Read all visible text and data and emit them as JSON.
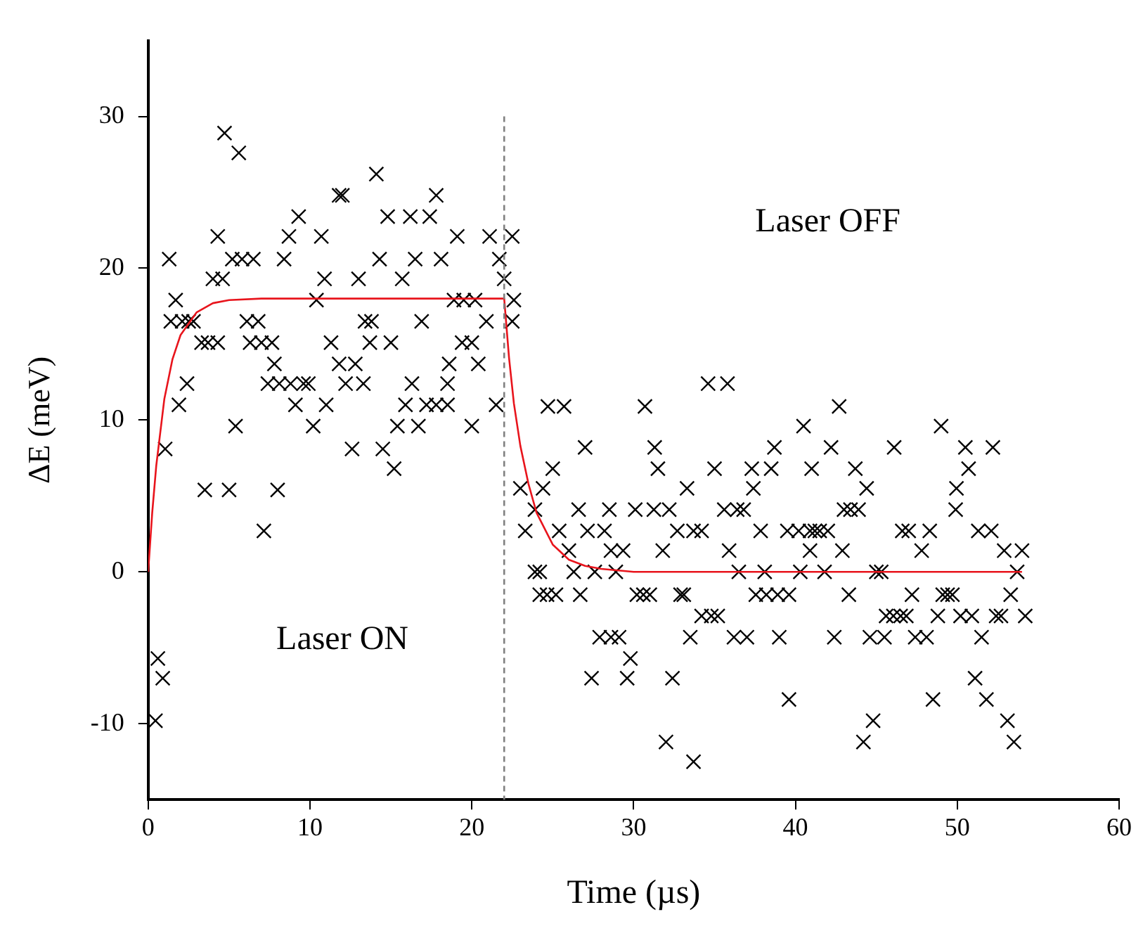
{
  "chart_data": {
    "type": "scatter",
    "xlabel": "Time (µs)",
    "ylabel": "ΔE (meV)",
    "xlim": [
      0,
      60
    ],
    "xticks": [
      0,
      10,
      20,
      30,
      40,
      50,
      60
    ],
    "ylim": [
      -15,
      35
    ],
    "yticks": [
      -10,
      0,
      10,
      20,
      30
    ],
    "grid": false,
    "legend": false,
    "marker": "cross",
    "series": [
      {
        "color": "#000000",
        "x": [
          4.72,
          5.6,
          14.1,
          11.8,
          12.0,
          17.8,
          9.3,
          14.8,
          16.2,
          17.4,
          4.3,
          8.7,
          10.7,
          19.1,
          21.1,
          22.5,
          1.3,
          5.2,
          5.8,
          6.5,
          8.4,
          14.3,
          16.5,
          18.1,
          21.7,
          4.0,
          4.6,
          10.9,
          13.0,
          15.7,
          22.0,
          1.7,
          10.4,
          18.9,
          19.5,
          20.2,
          22.6,
          1.4,
          2.1,
          2.5,
          2.8,
          6.1,
          6.8,
          13.4,
          13.8,
          16.9,
          20.9,
          22.5,
          3.3,
          3.7,
          4.3,
          6.3,
          7.0,
          7.65,
          11.3,
          13.7,
          15.0,
          19.4,
          20.0,
          7.8,
          11.8,
          12.8,
          18.6,
          20.4,
          2.4,
          7.4,
          8.1,
          8.8,
          9.6,
          9.9,
          12.2,
          13.3,
          16.3,
          18.5,
          1.9,
          9.1,
          11.0,
          15.9,
          17.2,
          17.8,
          18.5,
          21.5,
          5.4,
          10.2,
          15.4,
          16.7,
          20.0,
          1.05,
          12.6,
          14.5,
          15.2,
          3.5,
          5.0,
          8.0,
          7.15,
          0.6,
          0.9,
          0.45,
          34.6,
          35.8,
          24.7,
          25.7,
          30.7,
          40.5,
          27.0,
          31.3,
          38.7,
          25.0,
          31.5,
          35.0,
          37.3,
          38.5,
          41.0,
          23.0,
          24.4,
          33.3,
          37.4,
          23.9,
          26.6,
          28.5,
          30.1,
          31.25,
          32.2,
          35.6,
          36.4,
          36.8,
          23.3,
          25.4,
          27.15,
          28.2,
          32.7,
          33.7,
          34.2,
          37.85,
          39.5,
          40.2,
          40.9,
          41.5,
          26.0,
          28.6,
          29.35,
          31.8,
          35.9,
          40.9,
          23.9,
          24.2,
          26.3,
          27.6,
          28.9,
          36.5,
          38.1,
          40.3,
          24.2,
          24.65,
          25.2,
          26.7,
          30.2,
          30.6,
          31.0,
          32.9,
          33.1,
          37.55,
          38.2,
          38.9,
          39.6,
          34.2,
          34.8,
          35.2,
          27.9,
          28.6,
          29.1,
          33.5,
          36.2,
          37.0,
          39.0,
          29.8,
          27.4,
          29.6,
          32.4,
          39.6,
          32.0,
          33.7,
          42.7,
          49.0,
          42.2,
          46.1,
          50.5,
          52.2,
          43.7,
          50.7,
          44.4,
          49.95,
          43.0,
          43.4,
          43.9,
          49.9,
          41.2,
          42.0,
          46.6,
          47.0,
          48.3,
          51.3,
          52.1,
          42.9,
          47.8,
          52.9,
          54.0,
          41.8,
          45.0,
          45.3,
          53.7,
          43.3,
          47.2,
          49.1,
          49.4,
          49.7,
          53.3,
          45.6,
          46.05,
          46.5,
          46.85,
          48.8,
          50.2,
          50.9,
          52.4,
          52.7,
          54.2,
          42.4,
          44.6,
          45.5,
          47.4,
          48.1,
          51.5,
          51.1,
          48.5,
          51.8,
          44.8,
          53.1,
          44.2,
          53.5
        ],
        "values": [
          28.9,
          27.6,
          26.2,
          24.8,
          24.8,
          24.8,
          23.4,
          23.4,
          23.4,
          23.4,
          22.1,
          22.1,
          22.1,
          22.1,
          22.1,
          22.1,
          20.6,
          20.6,
          20.6,
          20.6,
          20.6,
          20.6,
          20.6,
          20.6,
          20.6,
          19.3,
          19.3,
          19.3,
          19.3,
          19.3,
          19.3,
          17.9,
          17.9,
          17.9,
          17.9,
          17.9,
          17.9,
          16.5,
          16.5,
          16.5,
          16.5,
          16.5,
          16.5,
          16.5,
          16.5,
          16.5,
          16.5,
          16.5,
          15.1,
          15.1,
          15.1,
          15.1,
          15.1,
          15.1,
          15.1,
          15.1,
          15.1,
          15.1,
          15.1,
          13.7,
          13.7,
          13.7,
          13.7,
          13.7,
          12.4,
          12.4,
          12.4,
          12.4,
          12.4,
          12.4,
          12.4,
          12.4,
          12.4,
          12.4,
          11.0,
          11.0,
          11.0,
          11.0,
          11.0,
          11.0,
          11.0,
          11.0,
          9.6,
          9.6,
          9.6,
          9.6,
          9.6,
          8.1,
          8.1,
          8.1,
          6.8,
          5.4,
          5.4,
          5.4,
          2.7,
          -5.7,
          -7.0,
          -9.8,
          12.4,
          12.4,
          10.9,
          10.9,
          10.9,
          9.6,
          8.2,
          8.2,
          8.2,
          6.8,
          6.8,
          6.8,
          6.8,
          6.8,
          6.8,
          5.5,
          5.5,
          5.5,
          5.5,
          4.1,
          4.1,
          4.1,
          4.1,
          4.1,
          4.1,
          4.1,
          4.1,
          4.1,
          2.7,
          2.7,
          2.7,
          2.7,
          2.7,
          2.7,
          2.7,
          2.7,
          2.7,
          2.7,
          2.7,
          2.7,
          1.4,
          1.4,
          1.4,
          1.4,
          1.4,
          1.4,
          0,
          0,
          0,
          0,
          0,
          0,
          0,
          0,
          -1.5,
          -1.5,
          -1.5,
          -1.5,
          -1.5,
          -1.5,
          -1.5,
          -1.5,
          -1.5,
          -1.5,
          -1.5,
          -1.5,
          -1.5,
          -2.9,
          -2.9,
          -2.9,
          -4.3,
          -4.3,
          -4.3,
          -4.3,
          -4.3,
          -4.3,
          -4.3,
          -5.7,
          -7.0,
          -7.0,
          -7.0,
          -8.4,
          -11.2,
          -12.5,
          10.9,
          9.6,
          8.2,
          8.2,
          8.2,
          8.2,
          6.8,
          6.8,
          5.5,
          5.5,
          4.1,
          4.1,
          4.1,
          4.1,
          2.7,
          2.7,
          2.7,
          2.7,
          2.7,
          2.7,
          2.7,
          1.4,
          1.4,
          1.4,
          1.4,
          0,
          0,
          0,
          0,
          -1.5,
          -1.5,
          -1.5,
          -1.5,
          -1.5,
          -1.5,
          -2.9,
          -2.9,
          -2.9,
          -2.9,
          -2.9,
          -2.9,
          -2.9,
          -2.9,
          -2.9,
          -2.9,
          -4.3,
          -4.3,
          -4.3,
          -4.3,
          -4.3,
          -4.3,
          -7.0,
          -8.4,
          -8.4,
          -9.8,
          -9.8,
          -11.2,
          -11.2
        ]
      },
      {
        "type": "line",
        "color": "#e8141c",
        "marker": "none",
        "x": [
          0,
          0.25,
          0.5,
          1,
          1.5,
          2,
          3,
          4,
          5,
          7,
          22,
          22.3,
          22.6,
          23,
          23.5,
          24,
          25,
          26,
          27,
          28,
          30,
          54
        ],
        "values": [
          0,
          3.9,
          7,
          11.4,
          14,
          15.6,
          17.1,
          17.7,
          17.9,
          18,
          18,
          14.1,
          11.1,
          8.3,
          5.8,
          3.9,
          1.8,
          0.8,
          0.4,
          0.2,
          0,
          0
        ]
      }
    ],
    "ref_lines": [
      {
        "axis": "x",
        "value": 22,
        "color": "#808080",
        "line_style": "dashed"
      }
    ],
    "annotations": [
      "Laser ON",
      "Laser OFF"
    ]
  }
}
